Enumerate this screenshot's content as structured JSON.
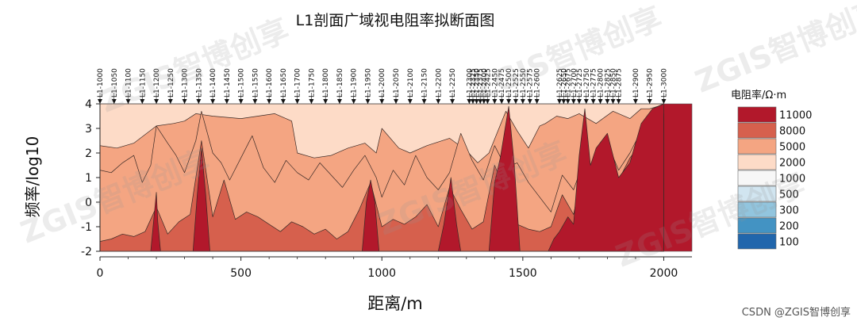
{
  "chart_data": {
    "type": "heatmap",
    "title": "L1剖面广域视电阻率拟断面图",
    "xlabel": "距离/m",
    "ylabel": "频率/log10",
    "xlim": [
      0,
      2100
    ],
    "ylim": [
      -2,
      4
    ],
    "x_ticks": [
      "0",
      "500",
      "1000",
      "1500",
      "2000"
    ],
    "x_tick_values": [
      0,
      500,
      1000,
      1500,
      2000
    ],
    "y_ticks": [
      "-2",
      "-1",
      "0",
      "1",
      "2",
      "3",
      "4"
    ],
    "y_tick_values": [
      -2,
      -1,
      0,
      1,
      2,
      3,
      4
    ],
    "stations": [
      {
        "name": "L1-1000",
        "x": 0
      },
      {
        "name": "L1-1050",
        "x": 50
      },
      {
        "name": "L1-1100",
        "x": 100
      },
      {
        "name": "L1-1150",
        "x": 150
      },
      {
        "name": "L1-1200",
        "x": 200
      },
      {
        "name": "L1-1250",
        "x": 250
      },
      {
        "name": "L1-1300",
        "x": 300
      },
      {
        "name": "L1-1350",
        "x": 350
      },
      {
        "name": "L1-1400",
        "x": 400
      },
      {
        "name": "L1-1450",
        "x": 450
      },
      {
        "name": "L1-1500",
        "x": 500
      },
      {
        "name": "L1-1550",
        "x": 550
      },
      {
        "name": "L1-1600",
        "x": 600
      },
      {
        "name": "L1-1650",
        "x": 650
      },
      {
        "name": "L1-1700",
        "x": 700
      },
      {
        "name": "L1-1750",
        "x": 750
      },
      {
        "name": "L1-1800",
        "x": 800
      },
      {
        "name": "L1-1850",
        "x": 850
      },
      {
        "name": "L1-1900",
        "x": 900
      },
      {
        "name": "L1-1950",
        "x": 950
      },
      {
        "name": "L1-2000",
        "x": 1000
      },
      {
        "name": "L1-2050",
        "x": 1050
      },
      {
        "name": "L1-2100",
        "x": 1100
      },
      {
        "name": "L1-2150",
        "x": 1150
      },
      {
        "name": "L1-2200",
        "x": 1200
      },
      {
        "name": "L1-2250",
        "x": 1250
      },
      {
        "name": "L1-2300",
        "x": 1310
      },
      {
        "name": "L1-2325",
        "x": 1323
      },
      {
        "name": "L1-2350",
        "x": 1336
      },
      {
        "name": "L1-2375",
        "x": 1349
      },
      {
        "name": "L1-2400",
        "x": 1362
      },
      {
        "name": "L1-2425",
        "x": 1375
      },
      {
        "name": "L1-2450",
        "x": 1400
      },
      {
        "name": "L1-2475",
        "x": 1425
      },
      {
        "name": "L1-2500",
        "x": 1450
      },
      {
        "name": "L1-2525",
        "x": 1475
      },
      {
        "name": "L1-2550",
        "x": 1500
      },
      {
        "name": "L1-2575",
        "x": 1525
      },
      {
        "name": "L1-2600",
        "x": 1550
      },
      {
        "name": "L1-2625",
        "x": 1630
      },
      {
        "name": "L1-2650",
        "x": 1645
      },
      {
        "name": "L1-2675",
        "x": 1660
      },
      {
        "name": "L1-2700",
        "x": 1680
      },
      {
        "name": "L1-2725",
        "x": 1700
      },
      {
        "name": "L1-2750",
        "x": 1725
      },
      {
        "name": "L1-2775",
        "x": 1750
      },
      {
        "name": "L1-2800",
        "x": 1775
      },
      {
        "name": "L1-2825",
        "x": 1800
      },
      {
        "name": "L1-2850",
        "x": 1820
      },
      {
        "name": "L1-2875",
        "x": 1840
      },
      {
        "name": "L1-2900",
        "x": 1900
      },
      {
        "name": "L1-2950",
        "x": 1950
      },
      {
        "name": "L1-3000",
        "x": 2000
      }
    ],
    "station_labels": [
      "L1-1000",
      "L1-1050",
      "L1-1100",
      "L1-1150",
      "L1-1200",
      "L1-1250",
      "L1-1300",
      "L1-1350",
      "L1-1400",
      "L1-1450",
      "L1-1500",
      "L1-1550",
      "L1-1600",
      "L1-1650",
      "L1-1700",
      "L1-1750",
      "L1-1800",
      "L1-1850",
      "L1-1900",
      "L1-1950",
      "L1-2000",
      "L1-2050",
      "L1-2100",
      "L1-2150",
      "L1-2200",
      "L1-2250",
      "L1-2300",
      "L1-2325",
      "L1-2350",
      "L1-2375",
      "L1-2400",
      "L1-2425",
      "L1-2450",
      "L1-2475",
      "L1-2500",
      "L1-2525",
      "L1-2550",
      "L1-2575",
      "L1-2600",
      "L1-2625",
      "L1-2650",
      "L1-2675",
      "L1-2700",
      "L1-2725",
      "L1-2750",
      "L1-2775",
      "L1-2800",
      "L1-2825",
      "L1-2850",
      "L1-2875",
      "L1-2900",
      "L1-2950",
      "L1-3000"
    ],
    "legend": {
      "title": "电阻率/Ω·m",
      "levels": [
        {
          "label": "11000",
          "color": "#b2182b"
        },
        {
          "label": "8000",
          "color": "#d6604d"
        },
        {
          "label": "5000",
          "color": "#f4a582"
        },
        {
          "label": "2000",
          "color": "#fddbc7"
        },
        {
          "label": "1000",
          "color": "#f7f7f7"
        },
        {
          "label": "500",
          "color": "#d1e5f0"
        },
        {
          "label": "300",
          "color": "#92c5de"
        },
        {
          "label": "200",
          "color": "#4393c3"
        },
        {
          "label": "100",
          "color": "#2166ac"
        }
      ]
    },
    "layers": [
      {
        "name": "2000",
        "color": "#fddbc7",
        "boundary_x": [
          0,
          60,
          120,
          200,
          260,
          300,
          340,
          400,
          500,
          560,
          620,
          680,
          700,
          760,
          820,
          880,
          940,
          980,
          1000,
          1060,
          1100,
          1160,
          1240,
          1300,
          1340,
          1380,
          1440,
          1480,
          1520,
          1560,
          1580,
          1620,
          1660,
          1700,
          1760,
          1820,
          1880,
          1920,
          1950,
          1980,
          2000
        ],
        "boundary_y": [
          2.3,
          2.2,
          2.4,
          3.1,
          3.2,
          3.3,
          3.6,
          3.5,
          3.4,
          3.5,
          3.6,
          3.3,
          2.0,
          1.8,
          1.9,
          2.2,
          2.4,
          2.0,
          3.0,
          2.2,
          2.0,
          2.3,
          2.6,
          2.1,
          1.6,
          2.0,
          3.7,
          2.9,
          2.2,
          3.1,
          3.2,
          3.5,
          3.4,
          3.6,
          3.2,
          3.7,
          3.4,
          3.8,
          3.8,
          3.9,
          4.0
        ]
      },
      {
        "name": "5000",
        "color": "#f4a582",
        "boundary_x": [
          0,
          40,
          80,
          120,
          150,
          180,
          200,
          240,
          270,
          300,
          340,
          360,
          400,
          430,
          460,
          500,
          540,
          580,
          620,
          660,
          700,
          740,
          780,
          820,
          860,
          900,
          940,
          980,
          1000,
          1040,
          1080,
          1120,
          1160,
          1200,
          1240,
          1280,
          1320,
          1360,
          1400,
          1440,
          1480,
          1520,
          1560,
          1600,
          1640,
          1680,
          1720,
          1760,
          1800,
          1840,
          1880,
          1920,
          1960,
          2000
        ],
        "boundary_y": [
          1.3,
          1.2,
          1.6,
          1.9,
          0.8,
          1.5,
          3.1,
          2.4,
          1.9,
          1.2,
          2.5,
          3.7,
          2.0,
          1.6,
          0.9,
          1.8,
          2.7,
          1.4,
          0.8,
          1.7,
          1.2,
          0.9,
          1.6,
          1.1,
          0.6,
          1.3,
          1.9,
          1.0,
          0.2,
          1.3,
          0.7,
          1.9,
          1.0,
          0.5,
          1.2,
          2.8,
          1.7,
          0.9,
          2.3,
          1.4,
          1.6,
          0.8,
          0.2,
          -0.4,
          1.1,
          0.5,
          1.8,
          1.0,
          2.4,
          1.3,
          2.0,
          2.9,
          3.1,
          3.5
        ]
      },
      {
        "name": "8000",
        "color": "#d6604d",
        "boundary_x": [
          0,
          40,
          80,
          120,
          160,
          200,
          240,
          280,
          320,
          360,
          400,
          440,
          480,
          520,
          560,
          600,
          640,
          680,
          720,
          760,
          800,
          840,
          880,
          920,
          960,
          1000,
          1040,
          1080,
          1120,
          1160,
          1200,
          1240,
          1280,
          1320,
          1360,
          1400,
          1440,
          1480,
          1520,
          1560,
          1600,
          1640,
          1680,
          1720,
          1760,
          1800,
          1840,
          1880,
          1920,
          1960,
          2000
        ],
        "boundary_y": [
          -1.6,
          -1.5,
          -1.3,
          -1.4,
          -1.2,
          -0.2,
          -1.3,
          -0.8,
          -0.5,
          2.5,
          -0.6,
          0.9,
          -0.7,
          -0.4,
          -0.6,
          -0.9,
          -1.2,
          -0.8,
          -1.0,
          -1.3,
          -1.1,
          -1.5,
          -1.2,
          -0.3,
          0.8,
          -1.0,
          -0.7,
          -0.9,
          -0.6,
          -0.1,
          -1.0,
          0.6,
          -0.3,
          -1.1,
          -0.8,
          1.5,
          0.4,
          -0.9,
          -1.1,
          -1.2,
          -1.0,
          0.3,
          -0.5,
          1.7,
          0.4,
          1.2,
          0.9,
          1.8,
          2.4,
          2.9,
          3.6
        ]
      },
      {
        "name": "11000",
        "color": "#b2182b",
        "boundary_x": [
          0,
          180,
          190,
          200,
          205,
          215,
          330,
          345,
          360,
          375,
          390,
          930,
          945,
          960,
          975,
          990,
          1200,
          1220,
          1245,
          1265,
          1280,
          1380,
          1400,
          1420,
          1450,
          1470,
          1490,
          1590,
          1610,
          1630,
          1660,
          1680,
          1700,
          1720,
          1740,
          1760,
          1800,
          1840,
          1880,
          1920,
          1960,
          2000
        ],
        "boundary_y": [
          -2.0,
          -2.0,
          -0.8,
          0.4,
          -0.8,
          -2.0,
          -2.0,
          0.3,
          2.2,
          0.3,
          -2.0,
          -2.0,
          0.0,
          0.9,
          0.0,
          -2.0,
          -2.0,
          -0.9,
          1.0,
          -0.9,
          -2.0,
          -2.0,
          0.8,
          1.8,
          3.9,
          1.5,
          -2.0,
          -2.0,
          -1.5,
          -1.2,
          -0.6,
          -0.9,
          1.9,
          3.8,
          1.5,
          2.2,
          2.8,
          1.0,
          1.6,
          3.2,
          3.8,
          4.0
        ]
      }
    ]
  },
  "watermarks": [
    "ZGIS智博创享",
    "ZGIS智博创享",
    "ZGIS智博创享",
    "ZGIS智博创享",
    "ZGIS智博创享",
    "ZGIS智博创享"
  ],
  "credit": "CSDN @ZGIS智博创享"
}
